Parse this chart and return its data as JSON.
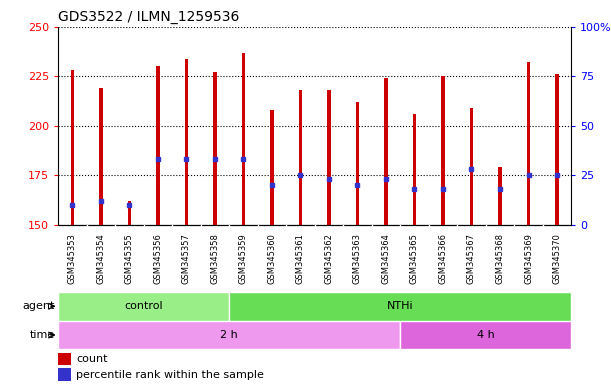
{
  "title": "GDS3522 / ILMN_1259536",
  "samples": [
    "GSM345353",
    "GSM345354",
    "GSM345355",
    "GSM345356",
    "GSM345357",
    "GSM345358",
    "GSM345359",
    "GSM345360",
    "GSM345361",
    "GSM345362",
    "GSM345363",
    "GSM345364",
    "GSM345365",
    "GSM345366",
    "GSM345367",
    "GSM345368",
    "GSM345369",
    "GSM345370"
  ],
  "counts": [
    228,
    219,
    162,
    230,
    234,
    227,
    237,
    208,
    218,
    218,
    212,
    224,
    206,
    225,
    209,
    179,
    232,
    226
  ],
  "percentile_ranks": [
    10,
    12,
    10,
    33,
    33,
    33,
    33,
    20,
    25,
    23,
    20,
    23,
    18,
    18,
    28,
    18,
    25,
    25
  ],
  "ymin": 150,
  "ymax": 250,
  "yticks": [
    150,
    175,
    200,
    225,
    250
  ],
  "right_yticks": [
    0,
    25,
    50,
    75,
    100
  ],
  "bar_color": "#CC0000",
  "marker_color": "#3333CC",
  "chart_bg": "#FFFFFF",
  "label_bg": "#D0D0D0",
  "agent_groups": [
    {
      "label": "control",
      "start": 0,
      "end": 6,
      "color": "#99EE88"
    },
    {
      "label": "NTHi",
      "start": 6,
      "end": 18,
      "color": "#66DD55"
    }
  ],
  "time_groups": [
    {
      "label": "2 h",
      "start": 0,
      "end": 12,
      "color": "#EE99EE"
    },
    {
      "label": "4 h",
      "start": 12,
      "end": 18,
      "color": "#DD66DD"
    }
  ],
  "legend_count_label": "count",
  "legend_percentile_label": "percentile rank within the sample",
  "agent_label": "agent",
  "time_label": "time",
  "bar_width": 0.12
}
